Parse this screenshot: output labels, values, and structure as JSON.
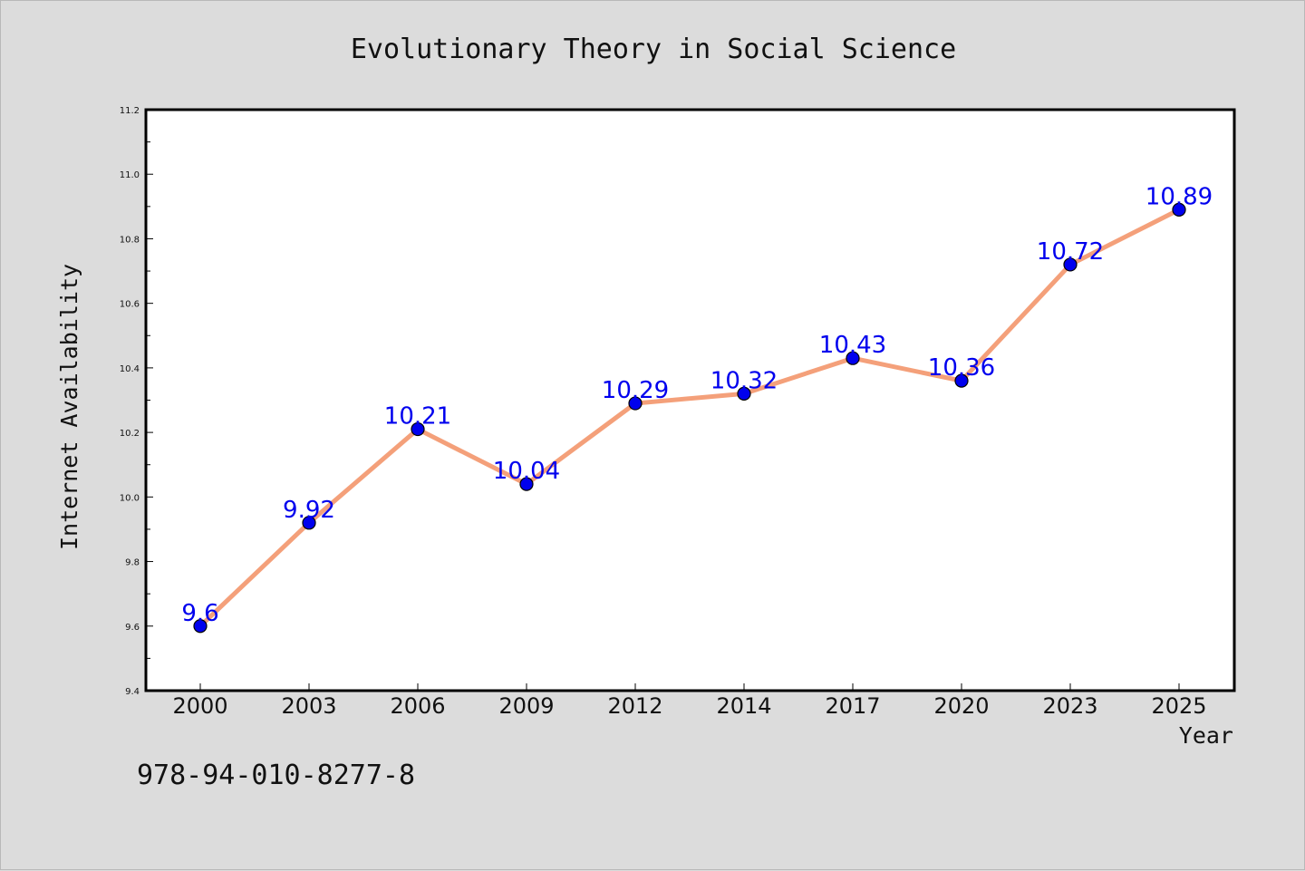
{
  "chart_data": {
    "type": "line",
    "title": "Evolutionary Theory in Social Science",
    "xlabel": "Year",
    "ylabel": "Internet Availability",
    "categories": [
      "2000",
      "2003",
      "2006",
      "2009",
      "2012",
      "2014",
      "2017",
      "2020",
      "2023",
      "2025"
    ],
    "series": [
      {
        "values": [
          9.6,
          9.92,
          10.21,
          10.04,
          10.29,
          10.32,
          10.43,
          10.36,
          10.72,
          10.89
        ],
        "data_labels": [
          "9.6",
          "9.92",
          "10.21",
          "10.04",
          "10.29",
          "10.32",
          "10.43",
          "10.36",
          "10.72",
          "10.89"
        ],
        "line_color": "#f4a07a",
        "marker_color": "#0000ee",
        "label_color": "#0000ee"
      }
    ],
    "ylim": [
      9.4,
      11.2
    ],
    "y_ticks": [
      "9.4",
      "9.6",
      "9.8",
      "10.0",
      "10.2",
      "10.4",
      "10.6",
      "10.8",
      "11.0",
      "11.2"
    ],
    "grid": false,
    "legend": "none",
    "annotation": "978-94-010-8277-8",
    "background_color": "#dcdcdc",
    "plot_background_color": "#ffffff"
  }
}
